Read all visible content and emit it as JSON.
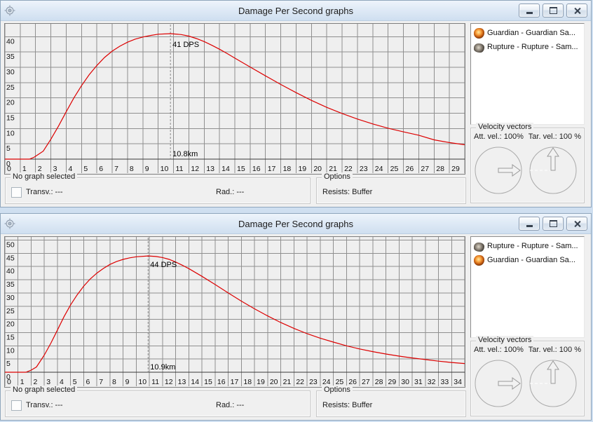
{
  "colors": {
    "curve": "#dd0000",
    "grid": "#8f8f8f",
    "plot_bg": "#efefef",
    "axis": "#3a3a3a",
    "marker": "#8a8a8a",
    "client_bg": "#f0f0f0",
    "titlebar": "#dfeaf6",
    "frame": "#d9e7f7"
  },
  "windows": [
    {
      "title": "Damage Per Second graphs",
      "window_controls": [
        "minimize-icon",
        "maximize-icon",
        "close-icon"
      ],
      "legend": [
        {
          "icon": "guardian",
          "label": "Guardian - Guardian Sa..."
        },
        {
          "icon": "rupture",
          "label": "Rupture - Rupture - Sam..."
        }
      ],
      "velocity": {
        "group_label": "Velocity vectors",
        "att_label": "Att. vel.: 100%",
        "tar_label": "Tar. vel.: 100 %"
      },
      "footer": {
        "group1_label": "No graph selected",
        "transv": "Transv.: ---",
        "rad": "Rad.: ---",
        "group2_label": "Options",
        "resists": "Resists: Buffer"
      }
    },
    {
      "title": "Damage Per Second graphs",
      "window_controls": [
        "minimize-icon",
        "maximize-icon",
        "close-icon"
      ],
      "legend": [
        {
          "icon": "rupture",
          "label": "Rupture - Rupture - Sam..."
        },
        {
          "icon": "guardian",
          "label": "Guardian - Guardian Sa..."
        }
      ],
      "velocity": {
        "group_label": "Velocity vectors",
        "att_label": "Att. vel.: 100%",
        "tar_label": "Tar. vel.: 100 %"
      },
      "footer": {
        "group1_label": "No graph selected",
        "transv": "Transv.: ---",
        "rad": "Rad.: ---",
        "group2_label": "Options",
        "resists": "Resists: Buffer"
      }
    }
  ],
  "chart_data": [
    {
      "type": "line",
      "name": "dps-graph-top",
      "title": "Damage Per Second graphs",
      "xlim": [
        0,
        30
      ],
      "ylim": [
        0,
        44.2
      ],
      "x_tick_step": 1,
      "y_tick_step": 5,
      "y_max_label": 40,
      "grid": true,
      "legend_position": "right-panel",
      "marker": {
        "x": 10.8,
        "top_label": "41 DPS",
        "bottom_label": "10.8km",
        "label_y": 34
      },
      "series": [
        {
          "name": "Rupture - Rupture - Sam...",
          "color": "#dd0000",
          "points": [
            [
              0,
              0
            ],
            [
              1.6,
              0
            ],
            [
              1.9,
              0.6
            ],
            [
              2.2,
              1.6
            ],
            [
              2.5,
              2.6
            ],
            [
              3,
              6.5
            ],
            [
              3.5,
              10.8
            ],
            [
              4,
              15.5
            ],
            [
              4.5,
              20
            ],
            [
              5,
              24
            ],
            [
              5.5,
              27.6
            ],
            [
              6,
              30.6
            ],
            [
              6.5,
              33.2
            ],
            [
              7,
              35.3
            ],
            [
              7.5,
              36.9
            ],
            [
              8,
              38.2
            ],
            [
              8.5,
              39.2
            ],
            [
              9,
              39.9
            ],
            [
              9.5,
              40.4
            ],
            [
              10,
              40.8
            ],
            [
              10.8,
              41
            ],
            [
              11.5,
              40.7
            ],
            [
              12,
              40.2
            ],
            [
              12.5,
              39.4
            ],
            [
              13,
              38.4
            ],
            [
              13.5,
              37.2
            ],
            [
              14,
              35.9
            ],
            [
              14.5,
              34.5
            ],
            [
              15,
              33
            ],
            [
              16,
              30.1
            ],
            [
              17,
              27.2
            ],
            [
              18,
              24.4
            ],
            [
              19,
              21.7
            ],
            [
              20,
              19.2
            ],
            [
              21,
              16.9
            ],
            [
              22,
              14.9
            ],
            [
              23,
              13.1
            ],
            [
              24,
              11.5
            ],
            [
              25,
              10.1
            ],
            [
              26,
              8.9
            ],
            [
              27,
              7.8
            ],
            [
              28,
              6.3
            ],
            [
              29,
              5.4
            ],
            [
              30,
              4.7
            ]
          ]
        }
      ]
    },
    {
      "type": "line",
      "name": "dps-graph-bottom",
      "title": "Damage Per Second graphs",
      "xlim": [
        0,
        35
      ],
      "ylim": [
        0,
        51.2
      ],
      "x_tick_step": 1,
      "y_tick_step": 5,
      "y_max_label": 50,
      "grid": true,
      "legend_position": "right-panel",
      "marker": {
        "x": 10.9,
        "top_label": "44 DPS",
        "bottom_label": "10.9km",
        "label_y": 44
      },
      "series": [
        {
          "name": "Rupture - Rupture - Sam...",
          "color": "#dd0000",
          "points": [
            [
              0,
              0
            ],
            [
              1.6,
              0
            ],
            [
              2,
              0.8
            ],
            [
              2.4,
              2
            ],
            [
              3,
              6.5
            ],
            [
              3.5,
              11
            ],
            [
              4,
              16
            ],
            [
              4.5,
              21
            ],
            [
              5,
              25.5
            ],
            [
              5.5,
              29.3
            ],
            [
              6,
              32.6
            ],
            [
              6.5,
              35.3
            ],
            [
              7,
              37.5
            ],
            [
              7.5,
              39.3
            ],
            [
              8,
              40.8
            ],
            [
              8.5,
              41.9
            ],
            [
              9,
              42.7
            ],
            [
              9.5,
              43.3
            ],
            [
              10,
              43.7
            ],
            [
              10.9,
              44
            ],
            [
              11.5,
              43.8
            ],
            [
              12,
              43.4
            ],
            [
              12.5,
              42.7
            ],
            [
              13,
              41.7
            ],
            [
              13.5,
              40.5
            ],
            [
              14,
              39.2
            ],
            [
              15,
              36.3
            ],
            [
              16,
              33.2
            ],
            [
              17,
              30
            ],
            [
              18,
              26.9
            ],
            [
              19,
              24
            ],
            [
              20,
              21.3
            ],
            [
              21,
              18.8
            ],
            [
              22,
              16.6
            ],
            [
              23,
              14.6
            ],
            [
              24,
              12.9
            ],
            [
              25,
              11.4
            ],
            [
              26,
              10
            ],
            [
              27,
              8.8
            ],
            [
              28,
              7.8
            ],
            [
              29,
              6.9
            ],
            [
              30,
              6.1
            ],
            [
              31,
              5.4
            ],
            [
              32,
              4.8
            ],
            [
              33,
              4.2
            ],
            [
              34,
              3.7
            ],
            [
              35,
              3.3
            ]
          ]
        }
      ]
    }
  ]
}
